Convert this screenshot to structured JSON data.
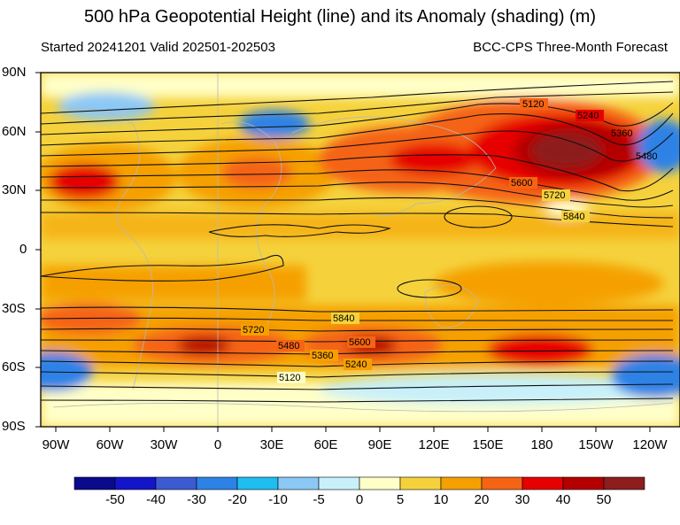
{
  "title": "500 hPa Geopotential Height (line) and its Anomaly (shading) (m)",
  "subtitle_left": "Started 20241201  Valid 202501-202503",
  "subtitle_right": "BCC-CPS Three-Month Forecast",
  "lat_labels": [
    "90N",
    "60N",
    "30N",
    "0",
    "30S",
    "60S",
    "90S"
  ],
  "lon_labels": [
    "90W",
    "60W",
    "30W",
    "0",
    "30E",
    "60E",
    "90E",
    "120E",
    "150E",
    "180",
    "150W",
    "120W"
  ],
  "contour_labels": [
    "5120",
    "5240",
    "5360",
    "5480",
    "5600",
    "5720",
    "5840",
    "5840",
    "5720",
    "5600",
    "5480",
    "5360",
    "5240",
    "5120"
  ],
  "colorbar": {
    "labels": [
      "-50",
      "-40",
      "-30",
      "-20",
      "-10",
      "-5",
      "0",
      "5",
      "10",
      "20",
      "30",
      "40",
      "50"
    ],
    "colors": [
      "#0a0a8c",
      "#1414c8",
      "#3c5ad2",
      "#2d82e6",
      "#1ebef0",
      "#8cc8f5",
      "#c8f0fa",
      "#ffffc8",
      "#f5d23c",
      "#f5a000",
      "#f56414",
      "#e60000",
      "#b40000",
      "#8c1e1e"
    ]
  },
  "chart_data": {
    "type": "heatmap",
    "title": "500 hPa Geopotential Height (line) and its Anomaly (shading) (m)",
    "subtitle": [
      "Started 20241201  Valid 202501-202503",
      "BCC-CPS Three-Month Forecast"
    ],
    "xlabel": "",
    "ylabel": "",
    "x_ticks": [
      "90W",
      "60W",
      "30W",
      "0",
      "30E",
      "60E",
      "90E",
      "120E",
      "150E",
      "180",
      "150W",
      "120W"
    ],
    "y_ticks": [
      "90N",
      "60N",
      "30N",
      "0",
      "30S",
      "60S",
      "90S"
    ],
    "shading_levels": [
      -50,
      -40,
      -30,
      -20,
      -10,
      -5,
      0,
      5,
      10,
      20,
      30,
      40,
      50
    ],
    "contour_levels": [
      5120,
      5240,
      5360,
      5480,
      5600,
      5720,
      5840
    ]
  }
}
